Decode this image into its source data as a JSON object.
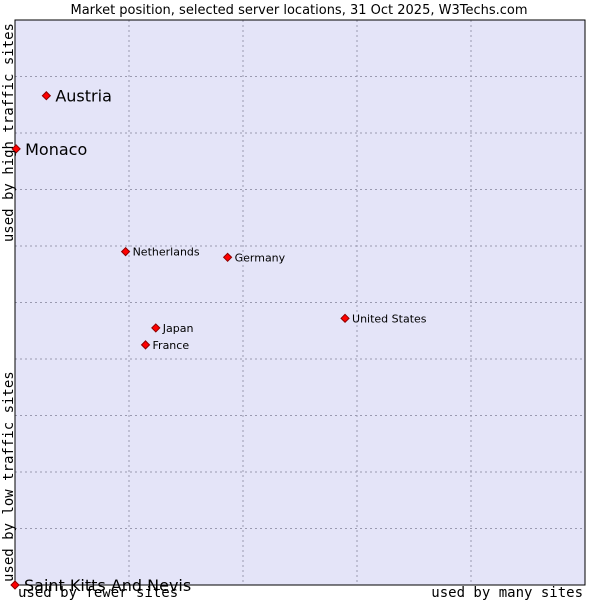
{
  "chart_data": {
    "type": "scatter",
    "title": "Market position, selected server locations, 31 Oct 2025, W3Techs.com",
    "xlabel_left": "used by fewer sites",
    "xlabel_right": "used by many sites",
    "ylabel_bottom": "used by low traffic sites",
    "ylabel_top": "used by high traffic sites",
    "xlim": [
      0,
      100
    ],
    "ylim": [
      0,
      100
    ],
    "grid": true,
    "colors": {
      "plot_background": "#e4e4f8",
      "grid": "#9a9ab0",
      "marker": "#ff0000",
      "marker_edge": "#8b0000"
    },
    "points": [
      {
        "label": "Austria",
        "x": 5.5,
        "y": 86.6,
        "emphasis": true
      },
      {
        "label": "Monaco",
        "x": 0.2,
        "y": 77.2,
        "emphasis": true
      },
      {
        "label": "Netherlands",
        "x": 19.4,
        "y": 59.0,
        "emphasis": false
      },
      {
        "label": "Germany",
        "x": 37.3,
        "y": 58.0,
        "emphasis": false
      },
      {
        "label": "United States",
        "x": 57.9,
        "y": 47.2,
        "emphasis": false
      },
      {
        "label": "Japan",
        "x": 24.7,
        "y": 45.5,
        "emphasis": false
      },
      {
        "label": "France",
        "x": 22.9,
        "y": 42.5,
        "emphasis": false
      },
      {
        "label": "Saint Kitts And Nevis",
        "x": 0.0,
        "y": 0.0,
        "emphasis": true
      }
    ]
  }
}
